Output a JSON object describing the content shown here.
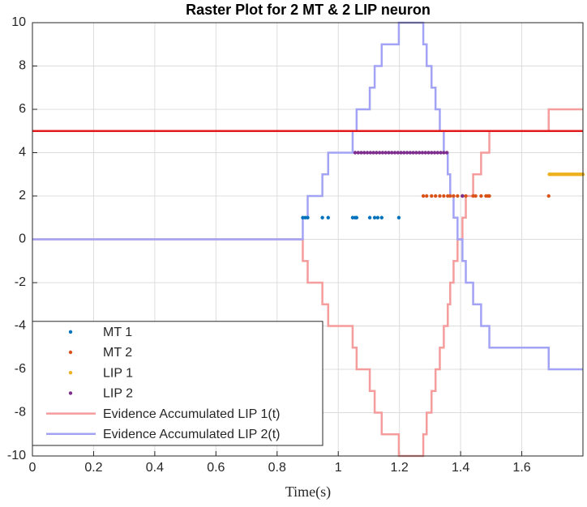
{
  "chart_data": {
    "type": "scatter",
    "title": "Raster Plot for 2 MT & 2 LIP neuron",
    "x_label": "Time(s)",
    "xlim": [
      0,
      1.8
    ],
    "ylim": [
      -10,
      10
    ],
    "xticks": [
      0,
      0.2,
      0.4,
      0.6,
      0.8,
      1,
      1.2,
      1.4,
      1.6
    ],
    "yticks": [
      -10,
      -8,
      -6,
      -4,
      -2,
      0,
      2,
      4,
      6,
      8,
      10
    ],
    "grid": true,
    "legend": "lower left",
    "threshold": {
      "value": 5,
      "color": "#e3191c"
    },
    "series": [
      {
        "name": "MT 1",
        "style": "dots",
        "color": "#0072BD",
        "x": [
          0.884,
          0.892,
          0.9,
          0.948,
          0.967,
          1.047,
          1.055,
          1.06,
          1.103,
          1.119,
          1.129,
          1.142,
          1.198
        ],
        "values": [
          1,
          1,
          1,
          1,
          1,
          1,
          1,
          1,
          1,
          1,
          1,
          1,
          1
        ]
      },
      {
        "name": "MT 2",
        "style": "dots",
        "color": "#D95319",
        "x": [
          1.278,
          1.289,
          1.305,
          1.318,
          1.332,
          1.345,
          1.358,
          1.366,
          1.377,
          1.39,
          1.406,
          1.417,
          1.441,
          1.449,
          1.467,
          1.483,
          1.489,
          1.494,
          1.688
        ],
        "values": [
          2,
          2,
          2,
          2,
          2,
          2,
          2,
          2,
          2,
          2,
          2,
          2,
          2,
          2,
          2,
          2,
          2,
          2,
          2
        ]
      },
      {
        "name": "LIP 1",
        "style": "dots",
        "color": "#EDB120",
        "x": [
          1.69,
          1.695,
          1.7,
          1.705,
          1.71,
          1.715,
          1.72,
          1.725,
          1.73,
          1.735,
          1.74,
          1.745,
          1.75,
          1.755,
          1.76,
          1.765,
          1.77,
          1.775,
          1.78,
          1.785,
          1.79,
          1.795,
          1.8
        ],
        "values": [
          3,
          3,
          3,
          3,
          3,
          3,
          3,
          3,
          3,
          3,
          3,
          3,
          3,
          3,
          3,
          3,
          3,
          3,
          3,
          3,
          3,
          3,
          3
        ]
      },
      {
        "name": "LIP 2",
        "style": "dots",
        "color": "#7E2F8E",
        "x": [
          1.055,
          1.065,
          1.075,
          1.085,
          1.095,
          1.105,
          1.115,
          1.125,
          1.135,
          1.145,
          1.155,
          1.165,
          1.175,
          1.185,
          1.195,
          1.205,
          1.215,
          1.225,
          1.235,
          1.245,
          1.255,
          1.265,
          1.275,
          1.285,
          1.295,
          1.305,
          1.315,
          1.325,
          1.335,
          1.345,
          1.355,
          1.406
        ],
        "values": [
          4,
          4,
          4,
          4,
          4,
          4,
          4,
          4,
          4,
          4,
          4,
          4,
          4,
          4,
          4,
          4,
          4,
          4,
          4,
          4,
          4,
          4,
          4,
          4,
          4,
          4,
          4,
          4,
          4,
          4,
          4,
          2
        ]
      },
      {
        "name": "Evidence Accumulated LIP 1(t)",
        "style": "line",
        "color": "#f59c9c",
        "x": [
          0,
          0.884,
          0.884,
          0.9,
          0.9,
          0.948,
          0.948,
          0.967,
          0.967,
          1.047,
          1.047,
          1.06,
          1.06,
          1.103,
          1.103,
          1.119,
          1.119,
          1.142,
          1.142,
          1.198,
          1.198,
          1.278,
          1.278,
          1.289,
          1.289,
          1.305,
          1.305,
          1.318,
          1.318,
          1.332,
          1.332,
          1.345,
          1.345,
          1.358,
          1.358,
          1.366,
          1.366,
          1.377,
          1.377,
          1.39,
          1.39,
          1.406,
          1.406,
          1.417,
          1.417,
          1.441,
          1.441,
          1.467,
          1.467,
          1.494,
          1.494,
          1.688,
          1.688,
          1.8
        ],
        "values": [
          0,
          0,
          -1,
          -1,
          -2,
          -2,
          -3,
          -3,
          -4,
          -4,
          -5,
          -5,
          -6,
          -6,
          -7,
          -7,
          -8,
          -8,
          -9,
          -9,
          -10,
          -10,
          -9,
          -9,
          -8,
          -8,
          -7,
          -7,
          -6,
          -6,
          -5,
          -5,
          -4,
          -4,
          -3,
          -3,
          -2,
          -2,
          -1,
          -1,
          0,
          0,
          1,
          1,
          2,
          2,
          3,
          3,
          4,
          4,
          5,
          5,
          6,
          6
        ]
      },
      {
        "name": "Evidence Accumulated LIP 2(t)",
        "style": "line",
        "color": "#a3a3f5",
        "x": [
          0,
          0.884,
          0.884,
          0.9,
          0.9,
          0.948,
          0.948,
          0.967,
          0.967,
          1.047,
          1.047,
          1.06,
          1.06,
          1.103,
          1.103,
          1.119,
          1.119,
          1.142,
          1.142,
          1.198,
          1.198,
          1.278,
          1.278,
          1.289,
          1.289,
          1.305,
          1.305,
          1.318,
          1.318,
          1.332,
          1.332,
          1.345,
          1.345,
          1.358,
          1.358,
          1.366,
          1.366,
          1.377,
          1.377,
          1.39,
          1.39,
          1.406,
          1.406,
          1.417,
          1.417,
          1.441,
          1.441,
          1.467,
          1.467,
          1.494,
          1.494,
          1.688,
          1.688,
          1.8
        ],
        "values": [
          0,
          0,
          1,
          1,
          2,
          2,
          3,
          3,
          4,
          4,
          5,
          5,
          6,
          6,
          7,
          7,
          8,
          8,
          9,
          9,
          10,
          10,
          9,
          9,
          8,
          8,
          7,
          7,
          6,
          6,
          5,
          5,
          4,
          4,
          3,
          3,
          2,
          2,
          1,
          1,
          0,
          0,
          -1,
          -1,
          -2,
          -2,
          -3,
          -3,
          -4,
          -4,
          -5,
          -5,
          -6,
          -6
        ]
      }
    ]
  }
}
